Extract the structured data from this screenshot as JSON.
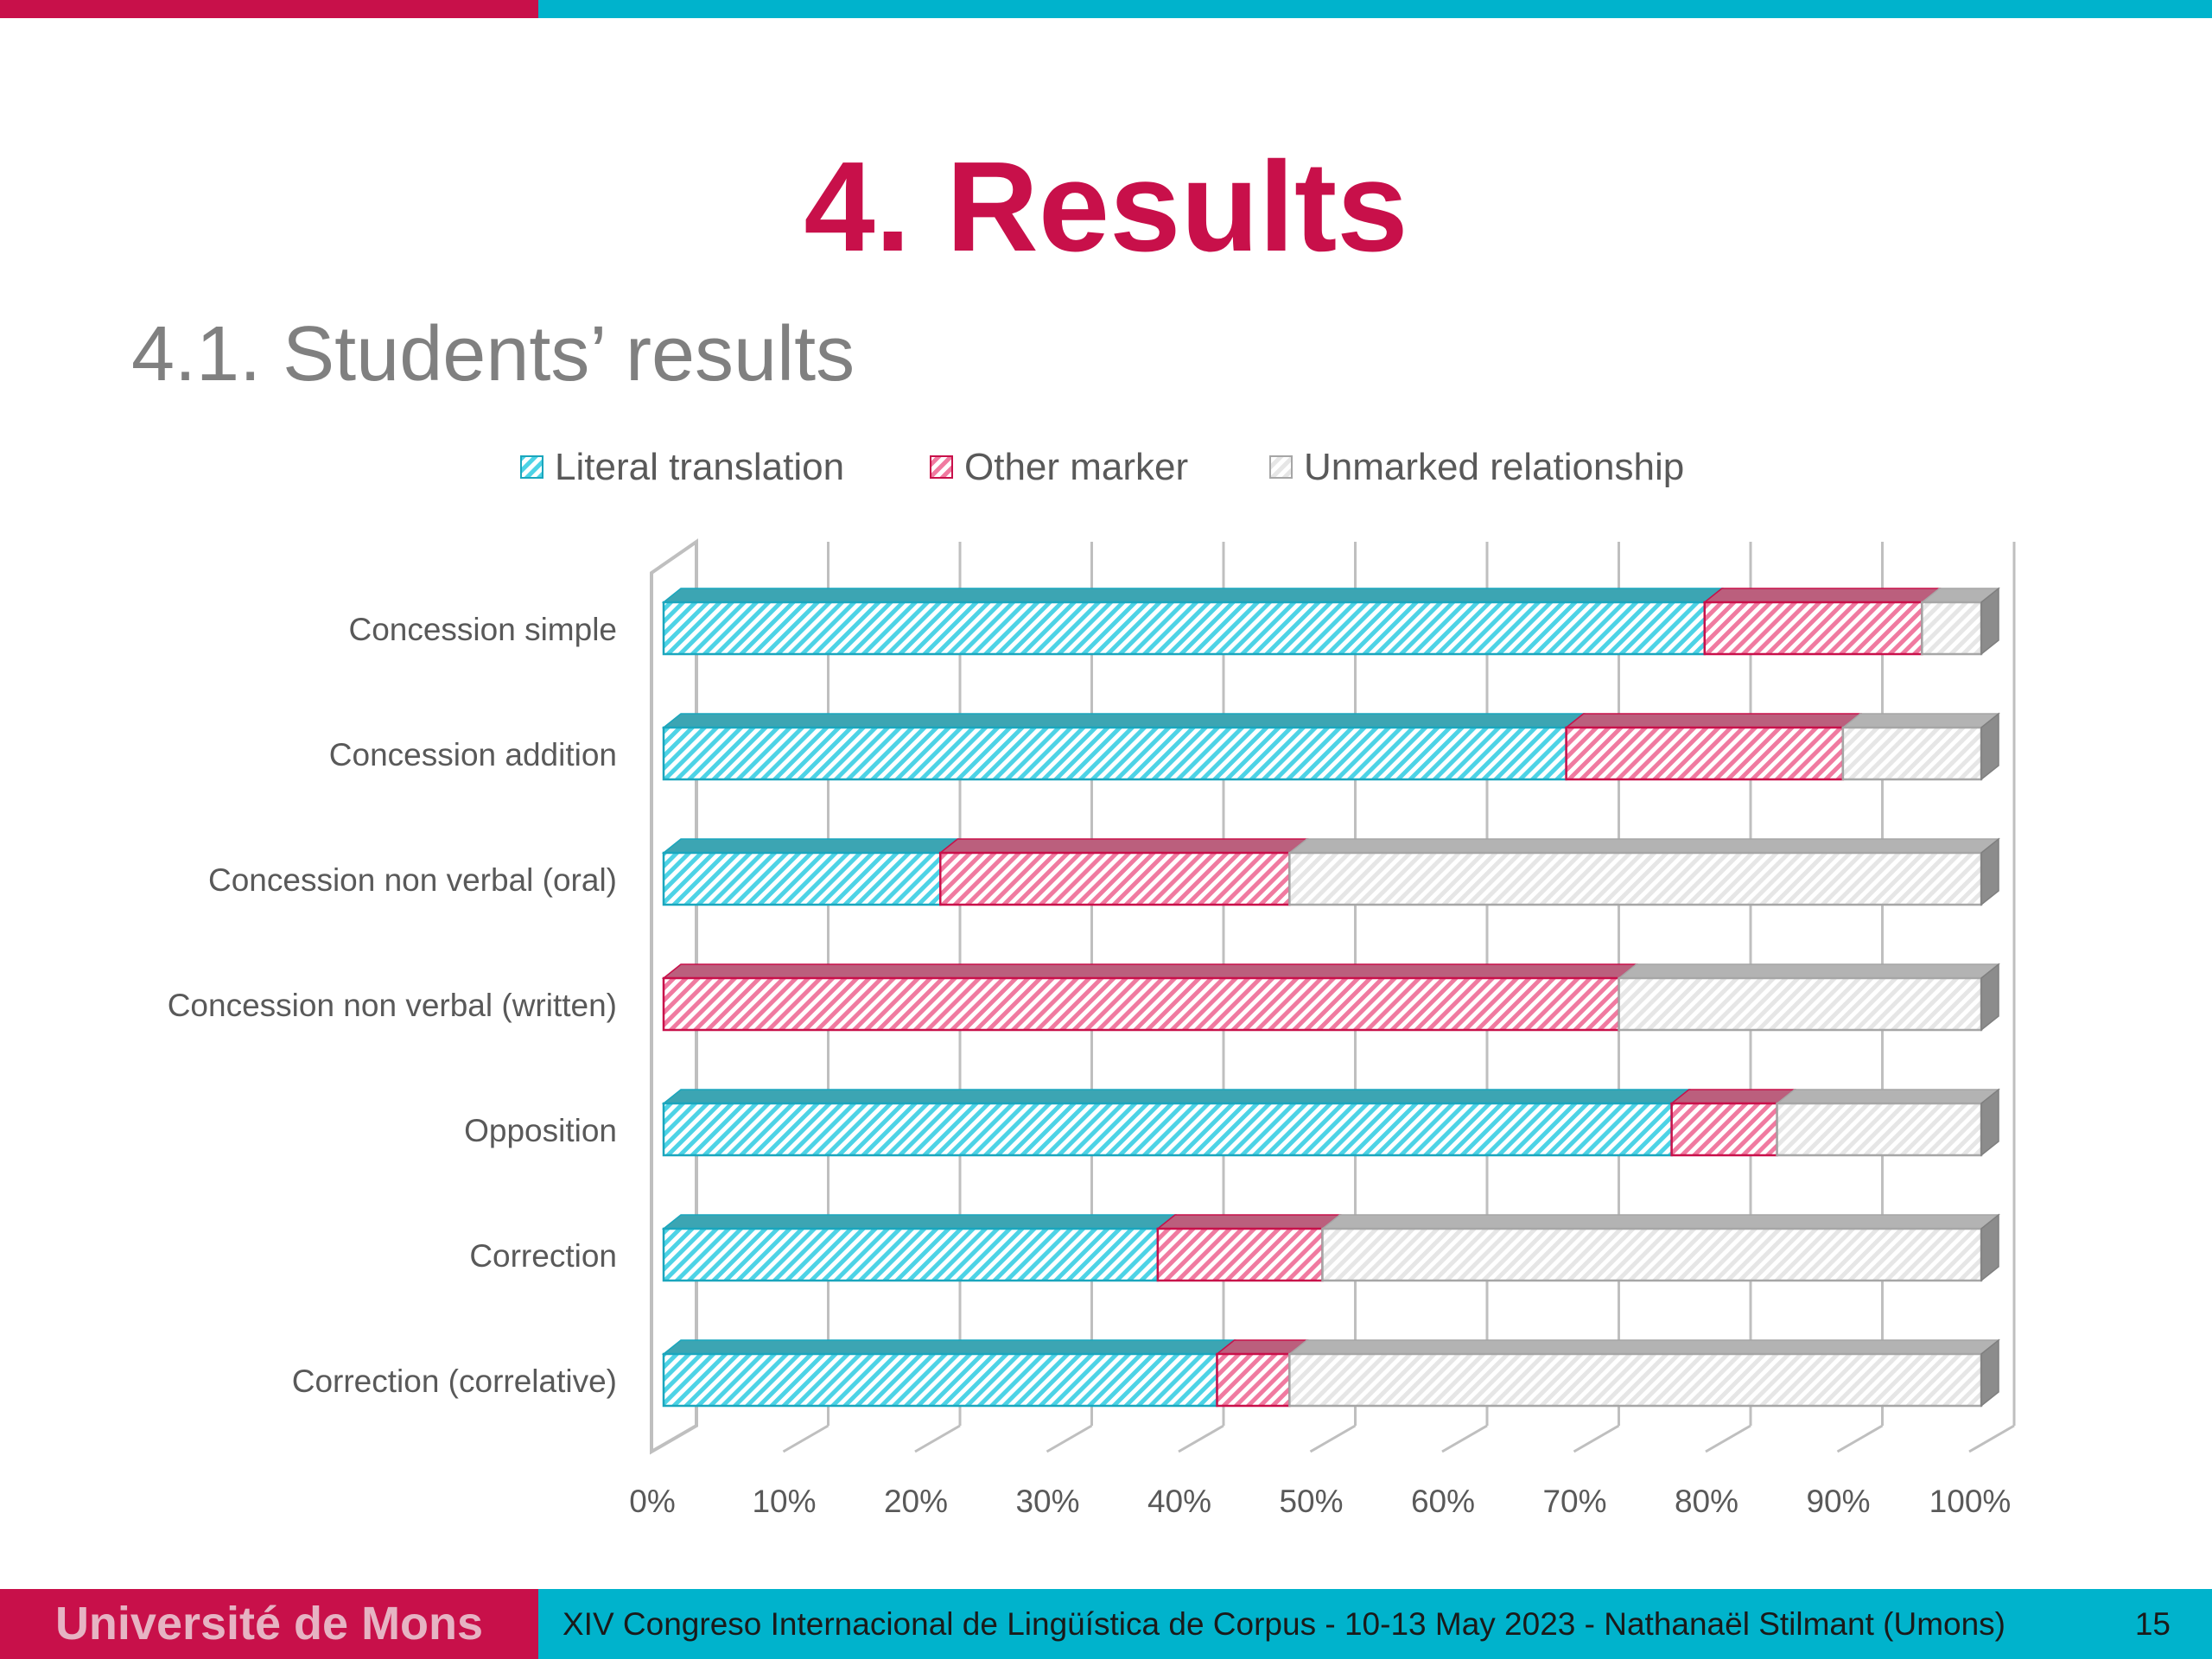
{
  "slide": {
    "title": "4. Results",
    "subtitle": "4.1. Students’ results"
  },
  "footer": {
    "university": "Université de Mons",
    "conference": "XIV Congreso Internacional de Lingüística de Corpus - 10-13 May 2023 - Nathanaël Stilmant (Umons)",
    "page_number": "15"
  },
  "colors": {
    "accent_red": "#c8104a",
    "accent_cyan": "#00b3cc"
  },
  "chart_data": {
    "type": "bar",
    "orientation": "horizontal",
    "stacked": "100%",
    "categories": [
      "Concession simple",
      "Concession addition",
      "Concession non verbal (oral)",
      "Concession non verbal (written)",
      "Opposition",
      "Correction",
      "Correction (correlative)"
    ],
    "series": [
      {
        "name": "Literal translation",
        "color": "#4dd3e6",
        "stroke": "#1aa6bd",
        "values": [
          79,
          68.5,
          21,
          0,
          76.5,
          37.5,
          42
        ]
      },
      {
        "name": "Other marker",
        "color": "#f07aa0",
        "stroke": "#c8104a",
        "values": [
          16.5,
          21,
          26.5,
          72.5,
          8,
          12.5,
          5.5
        ]
      },
      {
        "name": "Unmarked relationship",
        "color": "#e6e6e6",
        "stroke": "#a6a6a6",
        "values": [
          4.5,
          10.5,
          52.5,
          27.5,
          15.5,
          50,
          52.5
        ]
      }
    ],
    "x_ticks": [
      "0%",
      "10%",
      "20%",
      "30%",
      "40%",
      "50%",
      "60%",
      "70%",
      "80%",
      "90%",
      "100%"
    ],
    "xlim": [
      0,
      100
    ],
    "grid": true,
    "legend": "top"
  }
}
